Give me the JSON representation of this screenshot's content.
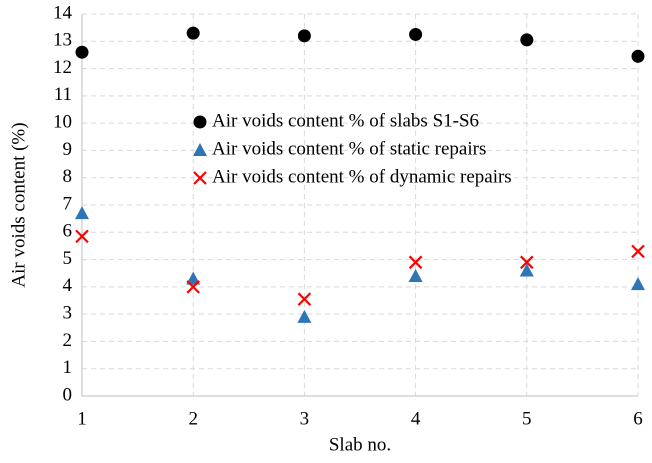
{
  "chart_data": {
    "type": "scatter",
    "xlabel": "Slab no.",
    "ylabel": "Air voids content (%)",
    "x": [
      1,
      2,
      3,
      4,
      5,
      6
    ],
    "series": [
      {
        "name": "Air voids content % of slabs S1-S6",
        "color": "#000000",
        "marker": "circle",
        "values": [
          12.6,
          13.3,
          13.2,
          13.25,
          13.05,
          12.45
        ]
      },
      {
        "name": "Air voids content % of static repairs",
        "color": "#2e75b6",
        "marker": "triangle",
        "values": [
          6.7,
          4.3,
          2.9,
          4.4,
          4.6,
          4.1
        ]
      },
      {
        "name": "Air voids content % of dynamic repairs",
        "color": "#ff0000",
        "marker": "cross",
        "values": [
          5.85,
          4.0,
          3.55,
          4.9,
          4.9,
          5.3
        ]
      }
    ],
    "xlim": [
      1,
      6
    ],
    "xticks": [
      1,
      2,
      3,
      4,
      5,
      6
    ],
    "ylim": [
      0,
      14
    ],
    "yticks": [
      0,
      1,
      2,
      3,
      4,
      5,
      6,
      7,
      8,
      9,
      10,
      11,
      12,
      13,
      14
    ],
    "grid": true,
    "legend": "center"
  }
}
